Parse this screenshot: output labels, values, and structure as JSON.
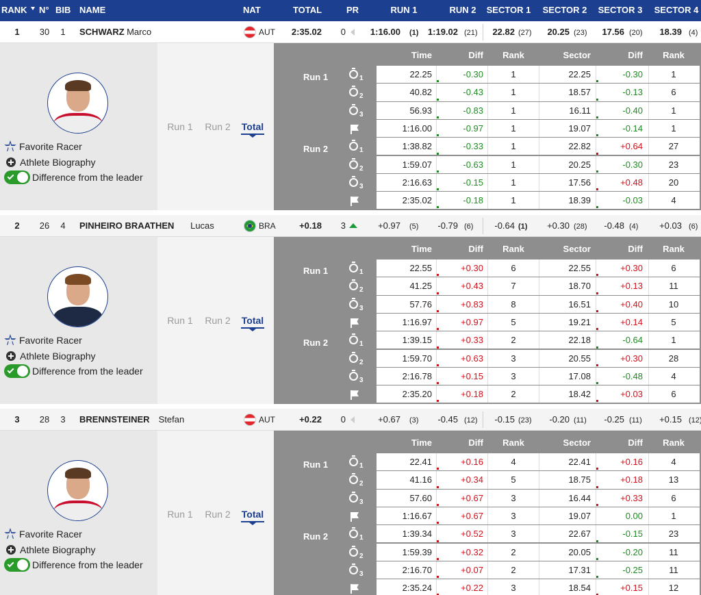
{
  "header": {
    "columns": [
      "RANK",
      "N°",
      "BIB",
      "NAME",
      "NAT",
      "TOTAL",
      "PR",
      "RUN 1",
      "RUN 2",
      "SECTOR 1",
      "SECTOR 2",
      "SECTOR 3",
      "SECTOR 4"
    ]
  },
  "panel": {
    "links": [
      "Favorite Racer",
      "Athlete Biography",
      "Difference from the leader"
    ],
    "tabs": [
      "Run 1",
      "Run 2",
      "Total"
    ],
    "columns": [
      "Time",
      "Diff",
      "Rank",
      "Sector",
      "Diff",
      "Rank"
    ],
    "run_labels": [
      "Run 1",
      "Run 2"
    ],
    "splits": [
      "1",
      "2",
      "3"
    ]
  },
  "athletes": [
    {
      "rank": "1",
      "number": "30",
      "bib": "1",
      "last_name": "SCHWARZ",
      "first_name": "Marco",
      "nat": "AUT",
      "total": "2:35.02",
      "pr": "0",
      "runs": [
        {
          "value": "1:16.00",
          "rank": "(1)"
        },
        {
          "value": "1:19.02",
          "rank": "(21)"
        }
      ],
      "sectors": [
        {
          "value": "22.82",
          "rank": "(27)"
        },
        {
          "value": "20.25",
          "rank": "(23)"
        },
        {
          "value": "17.56",
          "rank": "(20)"
        },
        {
          "value": "18.39",
          "rank": "(4)"
        }
      ],
      "rows": [
        [
          "22.25",
          "-0.30",
          "1",
          "22.25",
          "-0.30",
          "1"
        ],
        [
          "40.82",
          "-0.43",
          "1",
          "18.57",
          "-0.13",
          "6"
        ],
        [
          "56.93",
          "-0.83",
          "1",
          "16.11",
          "-0.40",
          "1"
        ],
        [
          "1:16.00",
          "-0.97",
          "1",
          "19.07",
          "-0.14",
          "1"
        ],
        [
          "1:38.82",
          "-0.33",
          "1",
          "22.82",
          "+0.64",
          "27"
        ],
        [
          "1:59.07",
          "-0.63",
          "1",
          "20.25",
          "-0.30",
          "23"
        ],
        [
          "2:16.63",
          "-0.15",
          "1",
          "17.56",
          "+0.48",
          "20"
        ],
        [
          "2:35.02",
          "-0.18",
          "1",
          "18.39",
          "-0.03",
          "4"
        ]
      ]
    },
    {
      "rank": "2",
      "number": "26",
      "bib": "4",
      "last_name": "PINHEIRO BRAATHEN",
      "first_name": "Lucas",
      "nat": "BRA",
      "total": "+0.18",
      "pr": "3",
      "runs": [
        {
          "value": "+0.97",
          "rank": "(5)"
        },
        {
          "value": "-0.79",
          "rank": "(6)"
        }
      ],
      "sectors": [
        {
          "value": "-0.64",
          "rank": "(1)"
        },
        {
          "value": "+0.30",
          "rank": "(28)"
        },
        {
          "value": "-0.48",
          "rank": "(4)"
        },
        {
          "value": "+0.03",
          "rank": "(6)"
        }
      ],
      "rows": [
        [
          "22.55",
          "+0.30",
          "6",
          "22.55",
          "+0.30",
          "6"
        ],
        [
          "41.25",
          "+0.43",
          "7",
          "18.70",
          "+0.13",
          "11"
        ],
        [
          "57.76",
          "+0.83",
          "8",
          "16.51",
          "+0.40",
          "10"
        ],
        [
          "1:16.97",
          "+0.97",
          "5",
          "19.21",
          "+0.14",
          "5"
        ],
        [
          "1:39.15",
          "+0.33",
          "2",
          "22.18",
          "-0.64",
          "1"
        ],
        [
          "1:59.70",
          "+0.63",
          "3",
          "20.55",
          "+0.30",
          "28"
        ],
        [
          "2:16.78",
          "+0.15",
          "3",
          "17.08",
          "-0.48",
          "4"
        ],
        [
          "2:35.20",
          "+0.18",
          "2",
          "18.42",
          "+0.03",
          "6"
        ]
      ]
    },
    {
      "rank": "3",
      "number": "28",
      "bib": "3",
      "last_name": "BRENNSTEINER",
      "first_name": "Stefan",
      "nat": "AUT",
      "total": "+0.22",
      "pr": "0",
      "runs": [
        {
          "value": "+0.67",
          "rank": "(3)"
        },
        {
          "value": "-0.45",
          "rank": "(12)"
        }
      ],
      "sectors": [
        {
          "value": "-0.15",
          "rank": "(23)"
        },
        {
          "value": "-0.20",
          "rank": "(11)"
        },
        {
          "value": "-0.25",
          "rank": "(11)"
        },
        {
          "value": "+0.15",
          "rank": "(12)"
        }
      ],
      "rows": [
        [
          "22.41",
          "+0.16",
          "4",
          "22.41",
          "+0.16",
          "4"
        ],
        [
          "41.16",
          "+0.34",
          "5",
          "18.75",
          "+0.18",
          "13"
        ],
        [
          "57.60",
          "+0.67",
          "3",
          "16.44",
          "+0.33",
          "6"
        ],
        [
          "1:16.67",
          "+0.67",
          "3",
          "19.07",
          "0.00",
          "1"
        ],
        [
          "1:39.34",
          "+0.52",
          "3",
          "22.67",
          "-0.15",
          "23"
        ],
        [
          "1:59.39",
          "+0.32",
          "2",
          "20.05",
          "-0.20",
          "11"
        ],
        [
          "2:16.70",
          "+0.07",
          "2",
          "17.31",
          "-0.25",
          "11"
        ],
        [
          "2:35.24",
          "+0.22",
          "3",
          "18.54",
          "+0.15",
          "12"
        ]
      ]
    }
  ]
}
